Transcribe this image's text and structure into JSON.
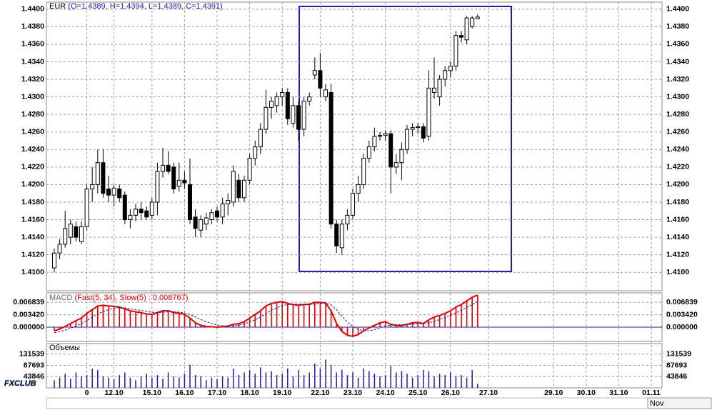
{
  "logo": "FXCLUB",
  "period_label": "Nov",
  "chart_data": [
    {
      "type": "candlestick",
      "symbol": "EUR",
      "ohlc_label": "(O=1.4389, H=1.4394, L=1.4389, C=1.4391)",
      "up_color": "#ffffff",
      "down_color": "#000000",
      "grid": true,
      "open": [
        1.4105,
        1.4122,
        1.4132,
        1.414,
        1.4152,
        1.4135,
        1.4152,
        1.4195,
        1.42,
        1.4225,
        1.4195,
        1.4188,
        1.4195,
        1.4188,
        1.416,
        1.4165,
        1.4172,
        1.417,
        1.4165,
        1.418,
        1.4215,
        1.4222,
        1.422,
        1.4198,
        1.4205,
        1.42,
        1.4163,
        1.4148,
        1.4155,
        1.416,
        1.417,
        1.4163,
        1.4178,
        1.418,
        1.4205,
        1.4185,
        1.4205,
        1.423,
        1.4243,
        1.4263,
        1.4288,
        1.429,
        1.43,
        1.4305,
        1.427,
        1.429,
        1.4263,
        1.4295,
        1.4325,
        1.433,
        1.43,
        1.4305,
        1.4155,
        1.4128,
        1.4155,
        1.4165,
        1.419,
        1.42,
        1.423,
        1.4243,
        1.4255,
        1.4256,
        1.4258,
        1.422,
        1.4225,
        1.424,
        1.4263,
        1.4265,
        1.4266,
        1.4255,
        1.4305,
        1.43,
        1.432,
        1.433,
        1.4335,
        1.437,
        1.4365,
        1.438,
        1.4389
      ],
      "high": [
        1.4127,
        1.4138,
        1.417,
        1.416,
        1.4158,
        1.4158,
        1.42,
        1.422,
        1.424,
        1.424,
        1.421,
        1.42,
        1.42,
        1.4192,
        1.4172,
        1.4178,
        1.418,
        1.4175,
        1.4185,
        1.4225,
        1.4242,
        1.4238,
        1.4225,
        1.4225,
        1.4215,
        1.423,
        1.4172,
        1.4165,
        1.4168,
        1.4172,
        1.4175,
        1.4185,
        1.419,
        1.4222,
        1.4212,
        1.421,
        1.4235,
        1.425,
        1.427,
        1.4308,
        1.43,
        1.4305,
        1.431,
        1.431,
        1.43,
        1.4295,
        1.43,
        1.4305,
        1.4345,
        1.435,
        1.4315,
        1.4315,
        1.416,
        1.416,
        1.4172,
        1.4195,
        1.421,
        1.4235,
        1.425,
        1.4265,
        1.426,
        1.4262,
        1.4262,
        1.4235,
        1.4248,
        1.4268,
        1.427,
        1.427,
        1.427,
        1.433,
        1.4345,
        1.4325,
        1.4335,
        1.434,
        1.4375,
        1.4375,
        1.4392,
        1.4392,
        1.4394
      ],
      "low": [
        1.41,
        1.4115,
        1.4128,
        1.4132,
        1.4135,
        1.4132,
        1.4148,
        1.418,
        1.419,
        1.4185,
        1.418,
        1.4175,
        1.418,
        1.4155,
        1.415,
        1.4158,
        1.416,
        1.416,
        1.416,
        1.4165,
        1.4208,
        1.4212,
        1.419,
        1.4192,
        1.4195,
        1.4155,
        1.414,
        1.414,
        1.4148,
        1.4155,
        1.4158,
        1.4155,
        1.4165,
        1.4175,
        1.418,
        1.418,
        1.42,
        1.4222,
        1.4235,
        1.4258,
        1.4275,
        1.4282,
        1.429,
        1.4268,
        1.4265,
        1.425,
        1.4255,
        1.429,
        1.432,
        1.43,
        1.4295,
        1.415,
        1.4122,
        1.412,
        1.4148,
        1.416,
        1.418,
        1.4195,
        1.4225,
        1.4238,
        1.425,
        1.425,
        1.419,
        1.4212,
        1.4205,
        1.4235,
        1.4255,
        1.4258,
        1.4248,
        1.425,
        1.4298,
        1.429,
        1.4312,
        1.4322,
        1.433,
        1.4362,
        1.436,
        1.4378,
        1.4389
      ],
      "close": [
        1.4122,
        1.4132,
        1.415,
        1.4155,
        1.414,
        1.4152,
        1.4195,
        1.42,
        1.4225,
        1.419,
        1.4188,
        1.4196,
        1.4185,
        1.416,
        1.4165,
        1.4172,
        1.4168,
        1.4163,
        1.418,
        1.4215,
        1.4222,
        1.4215,
        1.4195,
        1.4205,
        1.4202,
        1.416,
        1.415,
        1.416,
        1.4162,
        1.4168,
        1.4163,
        1.4178,
        1.4182,
        1.4215,
        1.4185,
        1.4205,
        1.423,
        1.4243,
        1.4263,
        1.4288,
        1.4295,
        1.43,
        1.4305,
        1.4275,
        1.429,
        1.4263,
        1.4295,
        1.43,
        1.433,
        1.431,
        1.4308,
        1.4155,
        1.413,
        1.4155,
        1.4165,
        1.419,
        1.42,
        1.423,
        1.4243,
        1.4255,
        1.4256,
        1.4258,
        1.422,
        1.4225,
        1.424,
        1.4263,
        1.4265,
        1.4266,
        1.4253,
        1.431,
        1.431,
        1.432,
        1.433,
        1.4335,
        1.437,
        1.4368,
        1.439,
        1.439,
        1.4391
      ],
      "ylim": [
        1.4079,
        1.4408
      ],
      "yticks": [
        {
          "value": 1.41,
          "label": "1.4100"
        },
        {
          "value": 1.412,
          "label": "1.4120"
        },
        {
          "value": 1.414,
          "label": "1.4140"
        },
        {
          "value": 1.416,
          "label": "1.4160"
        },
        {
          "value": 1.418,
          "label": "1.4180"
        },
        {
          "value": 1.42,
          "label": "1.4200"
        },
        {
          "value": 1.422,
          "label": "1.4220"
        },
        {
          "value": 1.424,
          "label": "1.4240"
        },
        {
          "value": 1.426,
          "label": "1.4260"
        },
        {
          "value": 1.428,
          "label": "1.4280"
        },
        {
          "value": 1.43,
          "label": "1.4300"
        },
        {
          "value": 1.432,
          "label": "1.4320"
        },
        {
          "value": 1.434,
          "label": "1.4340"
        },
        {
          "value": 1.436,
          "label": "1.4360"
        },
        {
          "value": 1.438,
          "label": "1.4380"
        },
        {
          "value": 1.44,
          "label": "1.4400"
        }
      ],
      "xticks": [
        {
          "value": 6,
          "label": "0"
        },
        {
          "value": 11,
          "label": "12.10"
        },
        {
          "value": 18,
          "label": "15.10"
        },
        {
          "value": 24,
          "label": "16.10"
        },
        {
          "value": 30,
          "label": "17.10"
        },
        {
          "value": 36,
          "label": "18.10"
        },
        {
          "value": 42,
          "label": "19.10"
        },
        {
          "value": 49,
          "label": "22.10"
        },
        {
          "value": 55,
          "label": "23.10"
        },
        {
          "value": 61,
          "label": "24.10"
        },
        {
          "value": 67,
          "label": "25.10"
        },
        {
          "value": 73,
          "label": "26.10"
        },
        {
          "value": 80,
          "label": "27.10"
        },
        {
          "value": 92,
          "label": "29.10"
        },
        {
          "value": 98,
          "label": "30.10"
        },
        {
          "value": 104,
          "label": "31.10"
        },
        {
          "value": 110,
          "label": "01.11"
        }
      ]
    },
    {
      "type": "macd",
      "name": "MACD",
      "params": "(Fast(5, 34), Slow(5) : 0.008767)",
      "series": [
        {
          "color": "#e00000",
          "values": [
            -0.001,
            -0.0005,
            0.0002,
            0.001,
            0.0018,
            0.0025,
            0.0038,
            0.0048,
            0.0058,
            0.006,
            0.0058,
            0.0057,
            0.0055,
            0.005,
            0.0045,
            0.0042,
            0.004,
            0.0036,
            0.0035,
            0.004,
            0.0045,
            0.0045,
            0.004,
            0.0038,
            0.0035,
            0.0025,
            0.0012,
            0.0005,
            0.0002,
            0.0001,
            0.0,
            0.0001,
            0.0003,
            0.0008,
            0.001,
            0.0015,
            0.0025,
            0.0035,
            0.0045,
            0.0058,
            0.0065,
            0.0068,
            0.007,
            0.0065,
            0.0062,
            0.006,
            0.0062,
            0.0063,
            0.0068,
            0.0068,
            0.0066,
            0.0045,
            0.001,
            -0.0012,
            -0.0022,
            -0.0025,
            -0.002,
            -0.001,
            -0.0002,
            0.0005,
            0.0012,
            0.0015,
            0.0008,
            0.0004,
            0.0004,
            0.0008,
            0.0012,
            0.0013,
            0.001,
            0.002,
            0.0028,
            0.0032,
            0.0038,
            0.0045,
            0.0055,
            0.0062,
            0.0072,
            0.0082,
            0.008767
          ]
        },
        {
          "color": "#1c1ca6",
          "values": [
            -0.0015,
            -0.0012,
            -0.0008,
            -0.0003,
            0.0003,
            0.001,
            0.0018,
            0.0027,
            0.0036,
            0.0043,
            0.0048,
            0.0052,
            0.0054,
            0.0053,
            0.0051,
            0.0048,
            0.0046,
            0.0043,
            0.0041,
            0.004,
            0.0041,
            0.0042,
            0.0042,
            0.0041,
            0.0039,
            0.0035,
            0.0028,
            0.0021,
            0.0015,
            0.001,
            0.0006,
            0.0004,
            0.0003,
            0.0004,
            0.0006,
            0.0009,
            0.0014,
            0.002,
            0.0028,
            0.0037,
            0.0046,
            0.0053,
            0.0059,
            0.0062,
            0.0063,
            0.0063,
            0.0062,
            0.0062,
            0.0063,
            0.0065,
            0.0066,
            0.0061,
            0.0048,
            0.003,
            0.0014,
            0.0002,
            -0.0006,
            -0.001,
            -0.001,
            -0.0007,
            -0.0002,
            0.0003,
            0.0006,
            0.0007,
            0.0007,
            0.0007,
            0.0008,
            0.0009,
            0.001,
            0.0012,
            0.0016,
            0.0021,
            0.0026,
            0.0032,
            0.0039,
            0.0047,
            0.0054,
            0.0062,
            0.007
          ]
        }
      ],
      "ylim": [
        -0.0039,
        0.0094
      ],
      "yticks": [
        0.006839,
        {
          "value": 0.00342,
          "label": "0.003420"
        },
        {
          "value": 0,
          "label": "0.000000"
        }
      ]
    },
    {
      "type": "volume",
      "name": "Объемы",
      "color": "#1c1ca6",
      "values": [
        30000,
        40000,
        55000,
        35000,
        60000,
        45000,
        50000,
        75000,
        70000,
        45000,
        40000,
        35000,
        50000,
        60000,
        40000,
        30000,
        45000,
        55000,
        40000,
        50000,
        35000,
        60000,
        45000,
        40000,
        55000,
        90000,
        50000,
        45000,
        30000,
        40000,
        35000,
        45000,
        40000,
        75000,
        50000,
        60000,
        70000,
        55000,
        80000,
        60000,
        65000,
        50000,
        55000,
        75000,
        45000,
        70000,
        50000,
        60000,
        95000,
        75000,
        110000,
        90000,
        60000,
        70000,
        50000,
        60000,
        40000,
        75000,
        65000,
        55000,
        45000,
        50000,
        85000,
        60000,
        65000,
        55000,
        40000,
        50000,
        70000,
        65000,
        45000,
        55000,
        50000,
        60000,
        45000,
        50000,
        40000,
        70000,
        15000
      ],
      "ylim": [
        0,
        172600
      ],
      "yticks": [
        131539,
        87693,
        43846
      ]
    }
  ]
}
